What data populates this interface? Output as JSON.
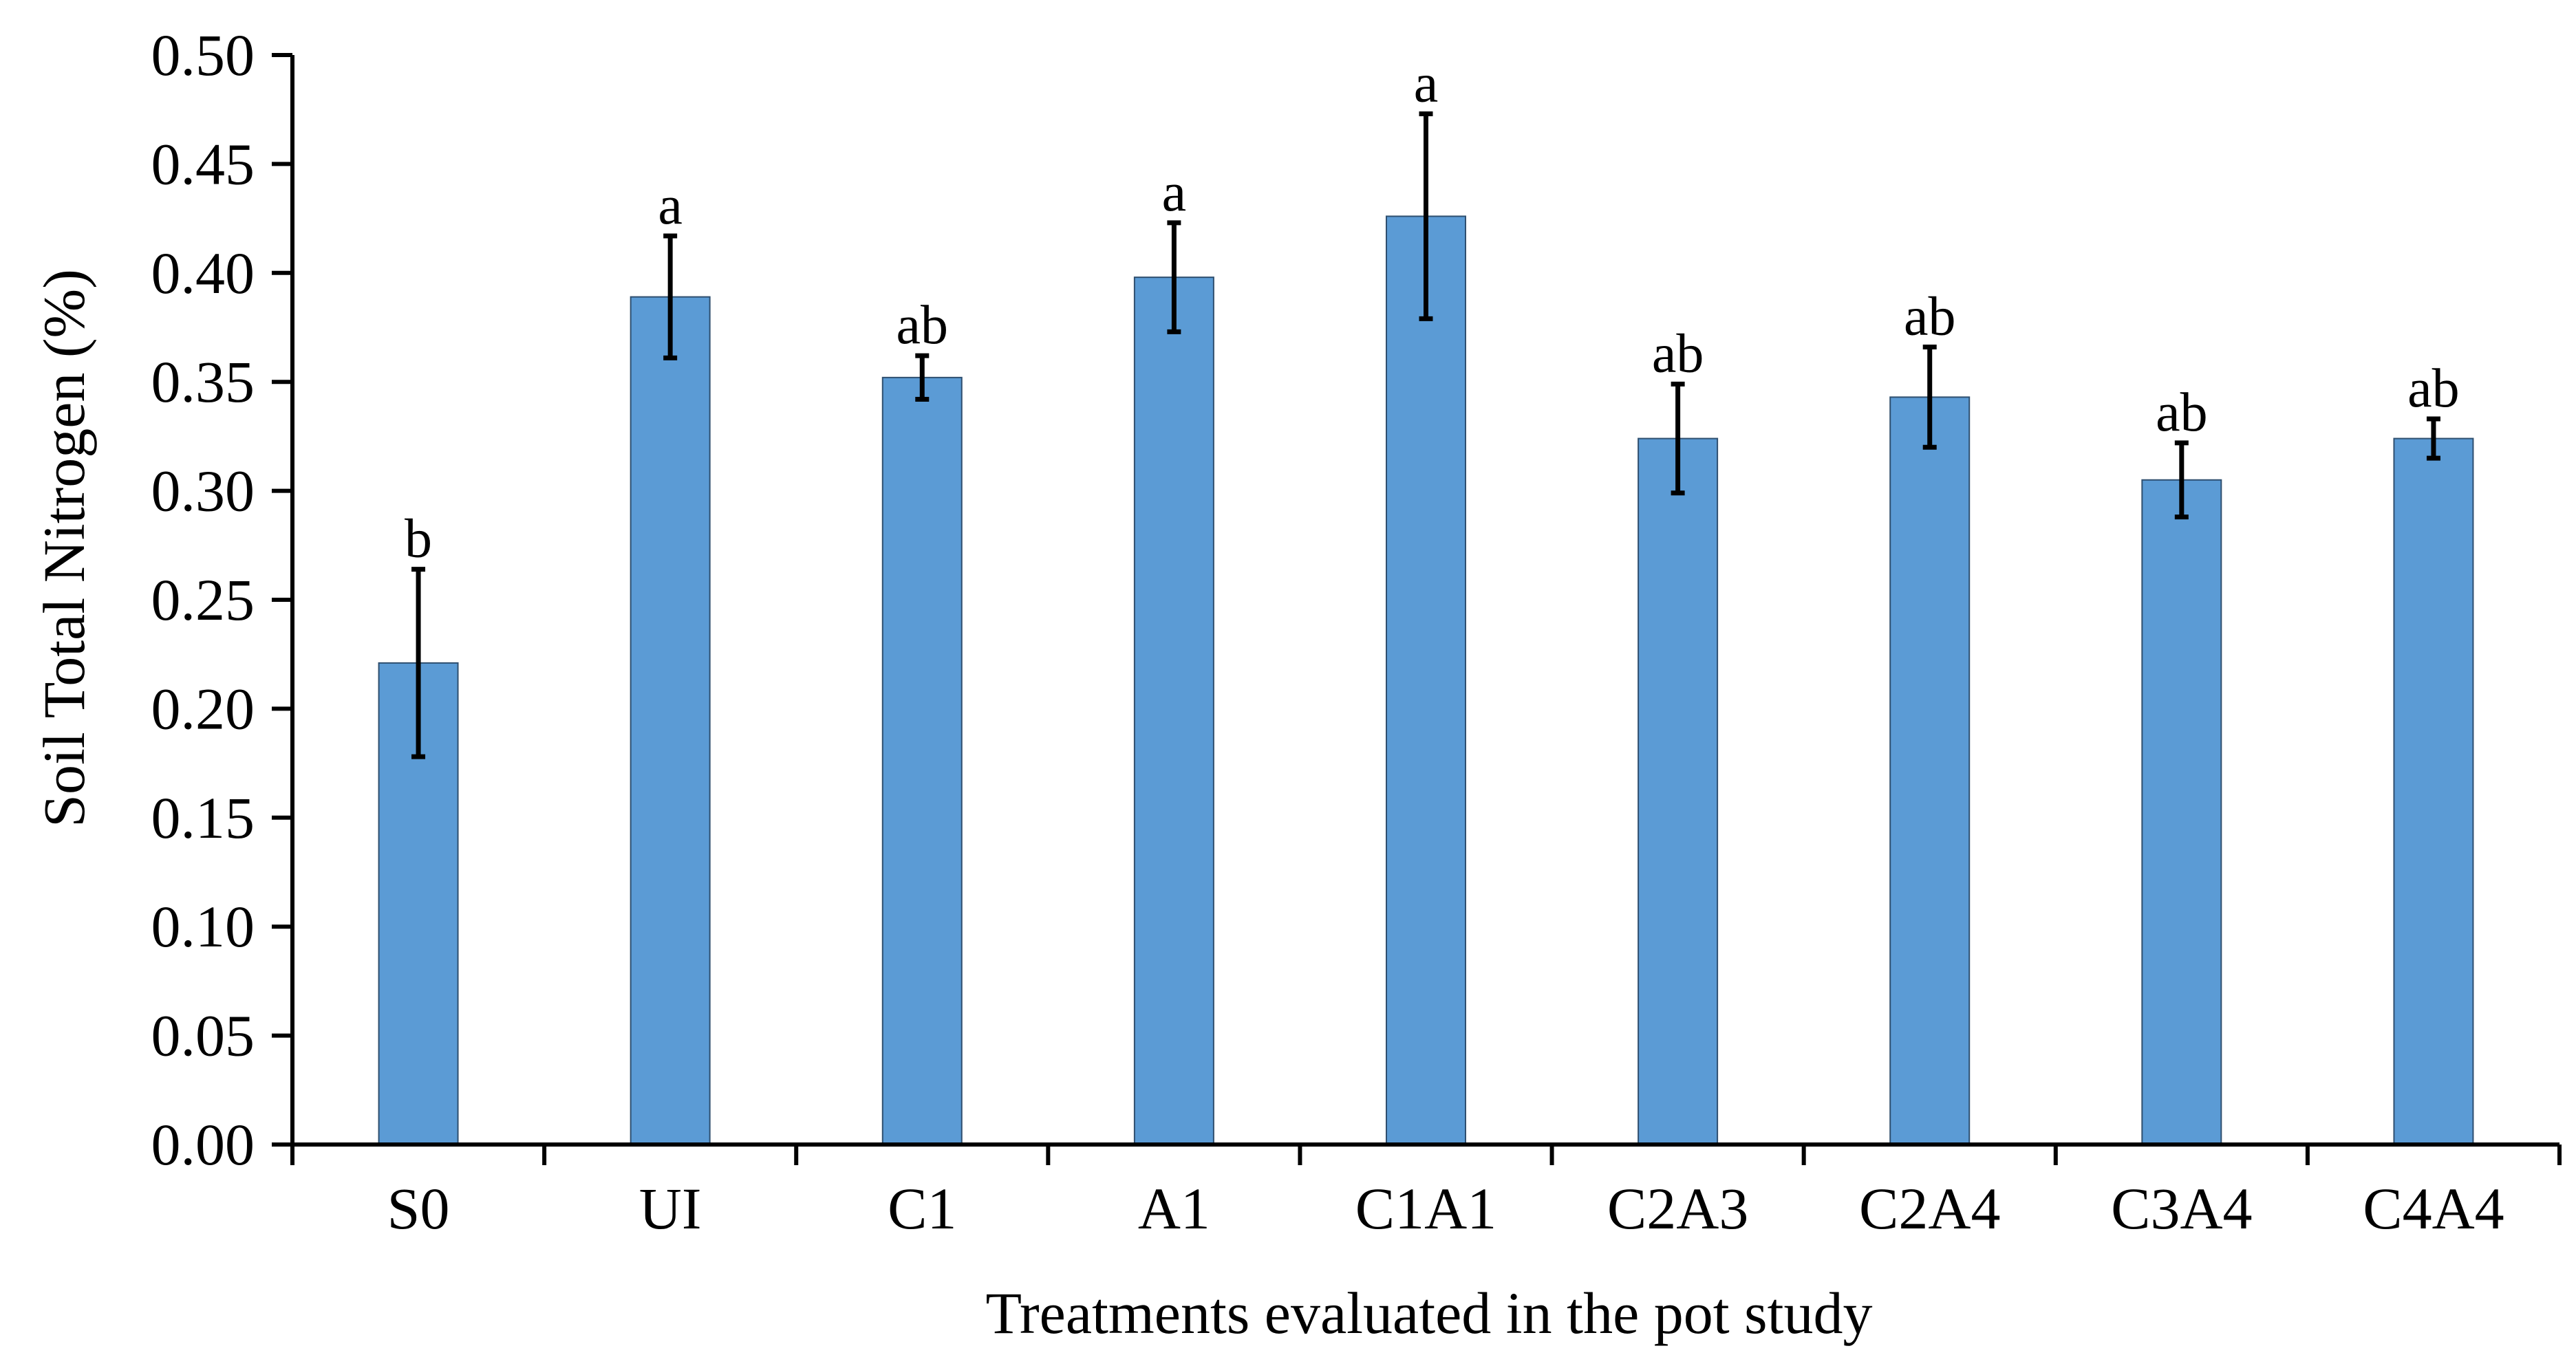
{
  "chart_data": {
    "type": "bar",
    "title": "",
    "xlabel": "Treatments evaluated in the pot study",
    "ylabel": "Soil Total Nitrogen (%)",
    "ylim": [
      0,
      0.5
    ],
    "yticks": [
      "0.00",
      "0.05",
      "0.10",
      "0.15",
      "0.20",
      "0.25",
      "0.30",
      "0.35",
      "0.40",
      "0.45",
      "0.50"
    ],
    "grid": false,
    "legend": "none",
    "categories": [
      "S0",
      "UI",
      "C1",
      "A1",
      "C1A1",
      "C2A3",
      "C2A4",
      "C3A4",
      "C4A4"
    ],
    "values": [
      0.221,
      0.389,
      0.352,
      0.398,
      0.426,
      0.324,
      0.343,
      0.305,
      0.324
    ],
    "errors": [
      0.043,
      0.028,
      0.01,
      0.025,
      0.047,
      0.025,
      0.023,
      0.017,
      0.009
    ],
    "significance_letters": [
      "b",
      "a",
      "ab",
      "a",
      "a",
      "ab",
      "ab",
      "ab",
      "ab"
    ],
    "colors": {
      "bar": "#5b9bd5",
      "bar_edge": "#2f4f6f",
      "axis": "#000000",
      "error": "#000000"
    }
  }
}
